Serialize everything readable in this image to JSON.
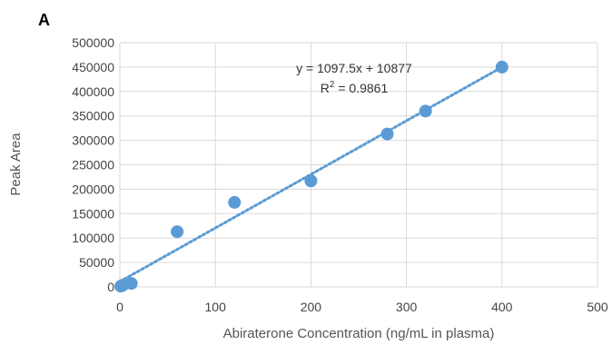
{
  "panel_label": "A",
  "chart_data": {
    "type": "scatter",
    "title": "",
    "xlabel": "Abiraterone Concentration (ng/mL in plasma)",
    "ylabel": "Peak Area",
    "xlim": [
      0,
      500
    ],
    "ylim": [
      0,
      500000
    ],
    "x_ticks": [
      0,
      100,
      200,
      300,
      400,
      500
    ],
    "y_ticks": [
      0,
      50000,
      100000,
      150000,
      200000,
      250000,
      300000,
      350000,
      400000,
      450000,
      500000
    ],
    "grid": true,
    "series": [
      {
        "color": "#5b9bd5",
        "points": [
          {
            "x": 1,
            "y": 1500
          },
          {
            "x": 3,
            "y": 3500
          },
          {
            "x": 12,
            "y": 7000
          },
          {
            "x": 60,
            "y": 113000
          },
          {
            "x": 120,
            "y": 173000
          },
          {
            "x": 200,
            "y": 217000
          },
          {
            "x": 280,
            "y": 313000
          },
          {
            "x": 320,
            "y": 360000
          },
          {
            "x": 400,
            "y": 450000
          }
        ]
      }
    ],
    "trendline": {
      "type": "linear",
      "slope": 1097.5,
      "intercept": 10877,
      "x_range": [
        0,
        400
      ],
      "style": "dotted",
      "color": "#5b9bd5",
      "equation_label": "y = 1097.5x + 10877",
      "r2_label_prefix": "R",
      "r2_label_sup": "2",
      "r2_label_value": " = 0.9861"
    }
  }
}
